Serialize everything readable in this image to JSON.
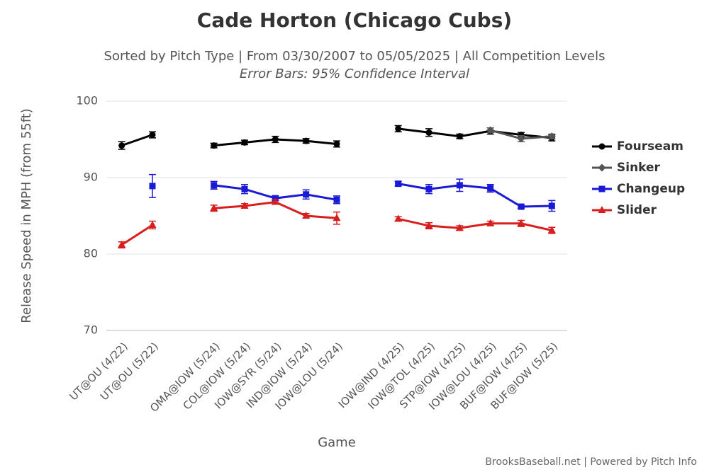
{
  "chart_data": {
    "type": "line",
    "title": "Cade Horton (Chicago Cubs)",
    "subtitle": "Sorted by Pitch Type | From 03/30/2007 to 05/05/2025 | All Competition Levels",
    "note": "Error Bars: 95% Confidence Interval",
    "y_label": "Release Speed in MPH (from 55ft)",
    "x_label": "Game",
    "credit": "BrooksBaseball.net | Powered by Pitch Info",
    "categories": [
      "UT@OU (4/22)",
      "UT@OU (5/22)",
      null,
      "OMA@IOW (5/24)",
      "COL@IOW (5/24)",
      "IOW@SYR (5/24)",
      "IND@IOW (5/24)",
      "IOW@LOU (5/24)",
      null,
      "IOW@IND (4/25)",
      "IOW@TOL (4/25)",
      "STP@IOW (4/25)",
      "IOW@LOU (4/25)",
      "BUF@IOW (4/25)",
      "BUF@IOW (5/25)"
    ],
    "ylim": [
      70,
      100
    ],
    "yticks": [
      70,
      80,
      90,
      100
    ],
    "grid": true,
    "legend": "right",
    "series": [
      {
        "name": "Fourseam",
        "color": "#000000",
        "marker": "circle",
        "values": [
          94.2,
          95.6,
          null,
          94.2,
          94.6,
          95.0,
          94.8,
          94.4,
          null,
          96.4,
          95.9,
          95.4,
          96.1,
          95.6,
          95.2
        ],
        "errors": [
          0.5,
          0.4,
          null,
          0.3,
          0.3,
          0.4,
          0.3,
          0.4,
          null,
          0.4,
          0.5,
          0.3,
          0.4,
          0.3,
          0.4
        ]
      },
      {
        "name": "Sinker",
        "color": "#555555",
        "marker": "diamond",
        "values": [
          null,
          null,
          null,
          null,
          null,
          null,
          null,
          null,
          null,
          null,
          null,
          null,
          96.2,
          95.1,
          95.4
        ],
        "errors": [
          null,
          null,
          null,
          null,
          null,
          null,
          null,
          null,
          null,
          null,
          null,
          null,
          0.3,
          0.4,
          0.3
        ]
      },
      {
        "name": "Changeup",
        "color": "#1a1ad6",
        "marker": "square",
        "values": [
          null,
          88.9,
          null,
          89.0,
          88.5,
          87.3,
          87.8,
          87.1,
          null,
          89.2,
          88.5,
          89.0,
          88.6,
          86.2,
          86.3
        ],
        "errors": [
          null,
          1.5,
          null,
          0.5,
          0.6,
          0.3,
          0.6,
          0.5,
          null,
          0.3,
          0.6,
          0.8,
          0.5,
          0.2,
          0.7
        ]
      },
      {
        "name": "Slider",
        "color": "#d91e1e",
        "marker": "triangle",
        "values": [
          81.2,
          83.8,
          null,
          86.0,
          86.3,
          86.8,
          85.0,
          84.7,
          null,
          84.6,
          83.7,
          83.4,
          84.0,
          84.0,
          83.1
        ],
        "errors": [
          0.4,
          0.5,
          null,
          0.4,
          0.3,
          0.3,
          0.3,
          0.8,
          null,
          0.3,
          0.4,
          0.3,
          0.3,
          0.4,
          0.4
        ]
      }
    ]
  }
}
